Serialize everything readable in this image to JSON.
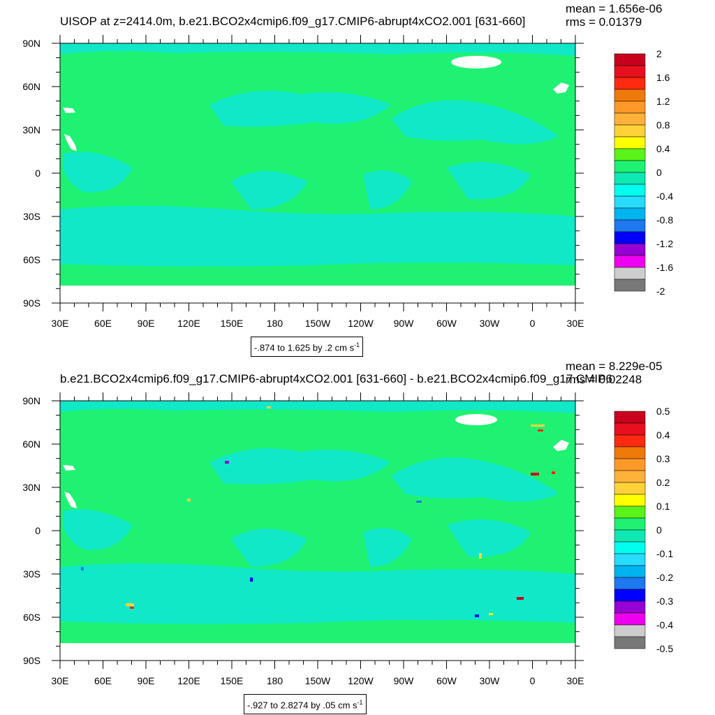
{
  "panels": [
    {
      "title": "UISOP at z=2414.0m, b.e21.BCO2x4cmip6.f09_g17.CMIP6-abrupt4xCO2.001 [631-660]",
      "mean": "mean = 1.656e-06",
      "rms": "rms = 0.01379",
      "contour_info": "-.874 to 1.625 by .2 cm s",
      "contour_info_exp": "-1",
      "lat_labels": [
        "90N",
        "60N",
        "30N",
        "0",
        "30S",
        "60S",
        "90S"
      ],
      "lon_labels": [
        "30E",
        "60E",
        "90E",
        "120E",
        "150E",
        "180",
        "150W",
        "120W",
        "90W",
        "60W",
        "30W",
        "0",
        "30E"
      ],
      "colorbar_labels": [
        "2",
        "1.6",
        "1.2",
        "0.8",
        "0.4",
        "0",
        "-0.4",
        "-0.8",
        "-1.2",
        "-1.6",
        "-2"
      ]
    },
    {
      "title": "b.e21.BCO2x4cmip6.f09_g17.CMIP6-abrupt4xCO2.001 [631-660] - b.e21.BCO2x4cmip6.f09_g17.CMIP6",
      "mean": "mean = 8.229e-05",
      "rms": "rms = 0.02248",
      "contour_info": "-.927 to 2.8274 by .05 cm s",
      "contour_info_exp": "-1",
      "lat_labels": [
        "90N",
        "60N",
        "30N",
        "0",
        "30S",
        "60S",
        "90S"
      ],
      "lon_labels": [
        "30E",
        "60E",
        "90E",
        "120E",
        "150E",
        "180",
        "150W",
        "120W",
        "90W",
        "60W",
        "30W",
        "0",
        "30E"
      ],
      "colorbar_labels": [
        "0.5",
        "0.4",
        "0.3",
        "0.2",
        "0.1",
        "0",
        "-0.1",
        "-0.2",
        "-0.3",
        "-0.4",
        "-0.5"
      ]
    }
  ],
  "colorbar_colors": [
    "#c8001e",
    "#e8101e",
    "#ff2a0f",
    "#ef7a0a",
    "#ff9a2a",
    "#ffb23a",
    "#ffd23a",
    "#ffff00",
    "#5bf41a",
    "#1ff272",
    "#10e8b4",
    "#00ffee",
    "#28dcff",
    "#00b4f0",
    "#1e78f0",
    "#0000ff",
    "#9600d2",
    "#f000f0",
    "#cdcdcd",
    "#787878"
  ],
  "map_colors": {
    "land_base": "#1ff272",
    "ocean_shade": "#10e8c8",
    "missing": "#ffffff"
  },
  "chart_data": [
    {
      "type": "heatmap",
      "title": "UISOP at z=2414.0m, b.e21.BCO2x4cmip6.f09_g17.CMIP6-abrupt4xCO2.001 [631-660]",
      "xlabel": "",
      "ylabel": "",
      "x_ticks": [
        "30E",
        "60E",
        "90E",
        "120E",
        "150E",
        "180",
        "150W",
        "120W",
        "90W",
        "60W",
        "30W",
        "0",
        "30E"
      ],
      "y_ticks": [
        "90N",
        "60N",
        "30N",
        "0",
        "30S",
        "60S",
        "90S"
      ],
      "colorbar_levels": [
        -2,
        -1.6,
        -1.2,
        -0.8,
        -0.4,
        0,
        0.4,
        0.8,
        1.2,
        1.6,
        2
      ],
      "legend": "right",
      "mean": 1.656e-06,
      "rms": 0.01379
    },
    {
      "type": "heatmap",
      "title": "b.e21.BCO2x4cmip6.f09_g17.CMIP6-abrupt4xCO2.001 [631-660] - b.e21.BCO2x4cmip6.f09_g17.CMIP6",
      "xlabel": "",
      "ylabel": "",
      "x_ticks": [
        "30E",
        "60E",
        "90E",
        "120E",
        "150E",
        "180",
        "150W",
        "120W",
        "90W",
        "60W",
        "30W",
        "0",
        "30E"
      ],
      "y_ticks": [
        "90N",
        "60N",
        "30N",
        "0",
        "30S",
        "60S",
        "90S"
      ],
      "colorbar_levels": [
        -0.5,
        -0.4,
        -0.3,
        -0.2,
        -0.1,
        0,
        0.1,
        0.2,
        0.3,
        0.4,
        0.5
      ],
      "legend": "right",
      "mean": 8.229e-05,
      "rms": 0.02248
    }
  ]
}
